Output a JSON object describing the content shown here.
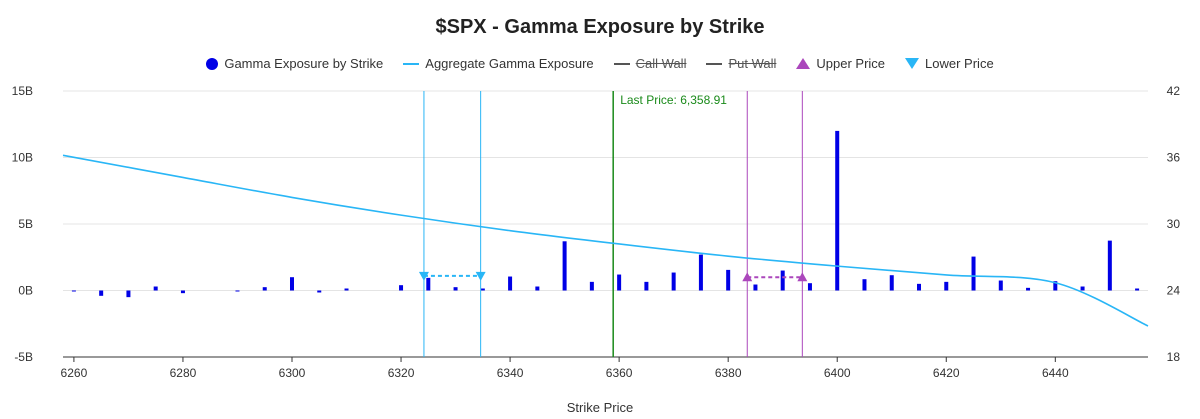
{
  "title": "$SPX - Gamma Exposure by Strike",
  "legend": [
    {
      "label": "Gamma Exposure by Strike",
      "shape": "dot",
      "color": "#0000e6",
      "hidden": false,
      "icon": "circle-marker-icon"
    },
    {
      "label": "Aggregate Gamma Exposure",
      "shape": "line",
      "color": "#29b6f6",
      "hidden": false,
      "icon": "line-marker-icon"
    },
    {
      "label": "Call Wall",
      "shape": "line",
      "color": "#555555",
      "hidden": true,
      "icon": "line-marker-icon"
    },
    {
      "label": "Put Wall",
      "shape": "line",
      "color": "#555555",
      "hidden": true,
      "icon": "line-marker-icon"
    },
    {
      "label": "Upper Price",
      "shape": "triangle-up",
      "color": "#ab47bc",
      "hidden": false,
      "icon": "triangle-up-icon"
    },
    {
      "label": "Lower Price",
      "shape": "triangle-down",
      "color": "#29b6f6",
      "hidden": false,
      "icon": "triangle-down-icon"
    }
  ],
  "chart_data": {
    "type": "bar",
    "title": "$SPX - Gamma Exposure by Strike",
    "xlabel": "Strike Price",
    "ylabel": "",
    "xlim": [
      6258,
      6457
    ],
    "ylim": [
      -5,
      15
    ],
    "y2lim": [
      18,
      42
    ],
    "x_ticks": [
      6260,
      6280,
      6300,
      6320,
      6340,
      6360,
      6380,
      6400,
      6420,
      6440
    ],
    "x_tick_labels": [
      "6260",
      "6280",
      "6300",
      "6320",
      "6340",
      "6360",
      "6380",
      "6400",
      "6420",
      "6440"
    ],
    "y_ticks": [
      -5,
      0,
      5,
      10,
      15
    ],
    "y_tick_labels": [
      "-5B",
      "0B",
      "5B",
      "10B",
      "15B"
    ],
    "y2_ticks": [
      18,
      24,
      30,
      36,
      42
    ],
    "y2_tick_labels": [
      "18",
      "24",
      "30",
      "36",
      "42"
    ],
    "grid": "horizontal",
    "legend_position": "top-center",
    "series": [
      {
        "name": "Gamma Exposure by Strike",
        "type": "bar",
        "axis": "left",
        "color": "#0000e6",
        "unit": "B",
        "x": [
          6260,
          6265,
          6270,
          6275,
          6280,
          6290,
          6295,
          6300,
          6305,
          6310,
          6320,
          6325,
          6330,
          6335,
          6340,
          6345,
          6350,
          6355,
          6360,
          6365,
          6370,
          6375,
          6380,
          6385,
          6390,
          6395,
          6400,
          6405,
          6410,
          6415,
          6420,
          6425,
          6430,
          6435,
          6440,
          6445,
          6450,
          6455
        ],
        "values": [
          -0.05,
          -0.4,
          -0.5,
          0.3,
          -0.2,
          -0.05,
          0.25,
          1.0,
          -0.15,
          0.15,
          0.4,
          0.95,
          0.25,
          0.15,
          1.05,
          0.3,
          3.7,
          0.65,
          1.2,
          0.65,
          1.35,
          2.7,
          1.55,
          0.45,
          1.5,
          0.55,
          12.0,
          0.85,
          1.15,
          0.5,
          0.65,
          2.55,
          0.75,
          0.2,
          0.7,
          0.3,
          3.75,
          0.15
        ]
      },
      {
        "name": "Aggregate Gamma Exposure",
        "type": "line",
        "axis": "right",
        "color": "#29b6f6",
        "x": [
          6258,
          6280,
          6300,
          6320,
          6340,
          6360,
          6380,
          6400,
          6420,
          6440,
          6457
        ],
        "values": [
          36.2,
          34.2,
          32.4,
          30.8,
          29.4,
          28.2,
          27.1,
          26.2,
          25.4,
          24.7,
          20.8
        ]
      }
    ],
    "reference_lines": [
      {
        "name": "Last Price",
        "x": 6358.91,
        "color": "#1a8a1a",
        "label": "Last Price: 6,358.91"
      },
      {
        "name": "Lower Price",
        "x": 6324.2,
        "color": "#29b6f6",
        "label": ""
      },
      {
        "name": "Lower Price",
        "x": 6334.6,
        "color": "#29b6f6",
        "label": ""
      },
      {
        "name": "Upper Price",
        "x": 6383.5,
        "color": "#ab47bc",
        "label": ""
      },
      {
        "name": "Upper Price",
        "x": 6393.6,
        "color": "#ab47bc",
        "label": ""
      }
    ],
    "range_markers": [
      {
        "name": "Lower Price",
        "x1": 6324.2,
        "x2": 6334.6,
        "y": 1.1,
        "shape": "triangle-down",
        "color": "#29b6f6"
      },
      {
        "name": "Upper Price",
        "x1": 6383.5,
        "x2": 6393.6,
        "y": 1.0,
        "shape": "triangle-up",
        "color": "#ab47bc"
      }
    ]
  }
}
